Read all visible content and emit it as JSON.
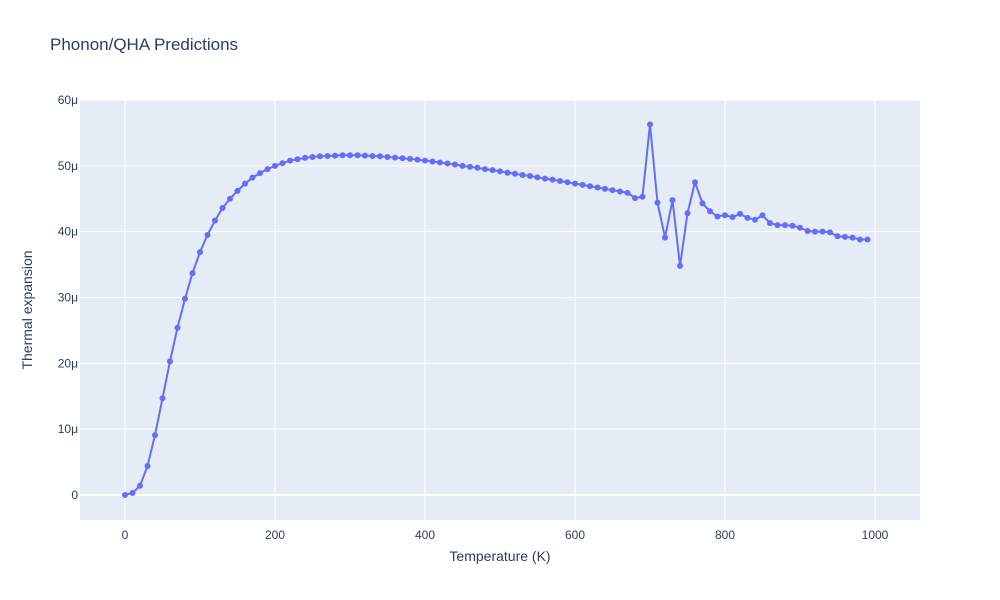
{
  "chart_data": {
    "type": "line",
    "title": "Phonon/QHA Predictions",
    "xlabel": "Temperature (K)",
    "ylabel": "Thermal expansion",
    "xlim": [
      -60,
      1060
    ],
    "ylim": [
      -3.8e-06,
      6e-05
    ],
    "xticks": [
      0,
      200,
      400,
      600,
      800,
      1000
    ],
    "xtick_labels": [
      "0",
      "200",
      "400",
      "600",
      "800",
      "1000"
    ],
    "yticks": [
      0,
      1e-05,
      2e-05,
      3e-05,
      4e-05,
      5e-05,
      6e-05
    ],
    "ytick_labels": [
      "0",
      "10μ",
      "20μ",
      "30μ",
      "40μ",
      "50μ",
      "60μ"
    ],
    "grid": true,
    "colors": {
      "plot_bg": "#e5ecf6",
      "grid": "#ffffff",
      "series": "#636efa",
      "text": "#2a3f5f"
    },
    "series": [
      {
        "mode": "lines+markers",
        "x": [
          0,
          10,
          20,
          30,
          40,
          50,
          60,
          70,
          80,
          90,
          100,
          110,
          120,
          130,
          140,
          150,
          160,
          170,
          180,
          190,
          200,
          210,
          220,
          230,
          240,
          250,
          260,
          270,
          280,
          290,
          300,
          310,
          320,
          330,
          340,
          350,
          360,
          370,
          380,
          390,
          400,
          410,
          420,
          430,
          440,
          450,
          460,
          470,
          480,
          490,
          500,
          510,
          520,
          530,
          540,
          550,
          560,
          570,
          580,
          590,
          600,
          610,
          620,
          630,
          640,
          650,
          660,
          670,
          680,
          690,
          700,
          710,
          720,
          730,
          740,
          750,
          760,
          770,
          780,
          790,
          800,
          810,
          820,
          830,
          840,
          850,
          860,
          870,
          880,
          890,
          900,
          910,
          920,
          930,
          940,
          950,
          960,
          970,
          980,
          990
        ],
        "y": [
          0.0,
          3e-07,
          1.4e-06,
          4.4e-06,
          9.1e-06,
          1.47e-05,
          2.03e-05,
          2.54e-05,
          2.98e-05,
          3.37e-05,
          3.69e-05,
          3.95e-05,
          4.17e-05,
          4.36e-05,
          4.5e-05,
          4.62e-05,
          4.73e-05,
          4.82e-05,
          4.89e-05,
          4.95e-05,
          5e-05,
          5.04e-05,
          5.08e-05,
          5.1e-05,
          5.12e-05,
          5.135e-05,
          5.145e-05,
          5.15e-05,
          5.155e-05,
          5.16e-05,
          5.16e-05,
          5.16e-05,
          5.155e-05,
          5.15e-05,
          5.145e-05,
          5.135e-05,
          5.125e-05,
          5.115e-05,
          5.105e-05,
          5.095e-05,
          5.08e-05,
          5.065e-05,
          5.05e-05,
          5.035e-05,
          5.02e-05,
          5e-05,
          4.985e-05,
          4.97e-05,
          4.95e-05,
          4.935e-05,
          4.915e-05,
          4.895e-05,
          4.88e-05,
          4.86e-05,
          4.845e-05,
          4.825e-05,
          4.805e-05,
          4.79e-05,
          4.77e-05,
          4.75e-05,
          4.73e-05,
          4.71e-05,
          4.69e-05,
          4.67e-05,
          4.65e-05,
          4.63e-05,
          4.61e-05,
          4.59e-05,
          4.51e-05,
          4.53e-05,
          5.63e-05,
          4.44e-05,
          3.91e-05,
          4.48e-05,
          3.48e-05,
          4.28e-05,
          4.75e-05,
          4.43e-05,
          4.31e-05,
          4.23e-05,
          4.25e-05,
          4.22e-05,
          4.27e-05,
          4.21e-05,
          4.18e-05,
          4.25e-05,
          4.13e-05,
          4.1e-05,
          4.1e-05,
          4.09e-05,
          4.06e-05,
          4.01e-05,
          4e-05,
          4e-05,
          3.99e-05,
          3.93e-05,
          3.92e-05,
          3.91e-05,
          3.88e-05,
          3.88e-05
        ]
      }
    ]
  }
}
